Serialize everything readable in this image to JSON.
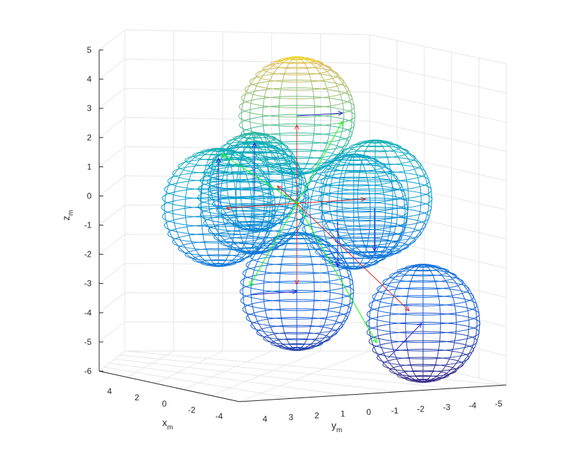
{
  "chart_data": {
    "type": "3d-wireframe",
    "xlabel": "x",
    "xlabel_sub": "m",
    "ylabel": "y",
    "ylabel_sub": "m",
    "zlabel": "z",
    "zlabel_sub": "m",
    "xlim": [
      -5,
      5
    ],
    "ylim": [
      -5,
      5
    ],
    "zlim": [
      -6,
      5
    ],
    "grid": true,
    "colormap": "parula",
    "x_ticks": [
      "4",
      "2",
      "0",
      "-2",
      "-4"
    ],
    "y_ticks": [
      "4",
      "3",
      "2",
      "1",
      "0",
      "-1",
      "-2",
      "-3",
      "-4",
      "-5"
    ],
    "z_ticks": [
      "5",
      "4",
      "3",
      "2",
      "1",
      "0",
      "-1",
      "-2",
      "-3",
      "-4",
      "-5",
      "-6"
    ],
    "spheres": [
      {
        "name": "sphere-top",
        "center_z": 3.0,
        "radius": 1.85
      },
      {
        "name": "sphere-upper-back",
        "center_z": 0.5,
        "radius": 1.6
      },
      {
        "name": "sphere-left",
        "center_z": -0.2,
        "radius": 1.85
      },
      {
        "name": "sphere-right",
        "center_z": -0.2,
        "radius": 1.85
      },
      {
        "name": "sphere-inner-left",
        "center_z": -0.2,
        "radius": 1.6
      },
      {
        "name": "sphere-inner-right",
        "center_z": -0.8,
        "radius": 1.6
      },
      {
        "name": "sphere-bottom",
        "center_z": -3.2,
        "radius": 1.85
      },
      {
        "name": "sphere-front-right",
        "center_z": -4.3,
        "radius": 1.85
      }
    ],
    "vectors": {
      "red": "#d62728",
      "green": "#00ff00",
      "blue": "#1f1fd0"
    }
  }
}
